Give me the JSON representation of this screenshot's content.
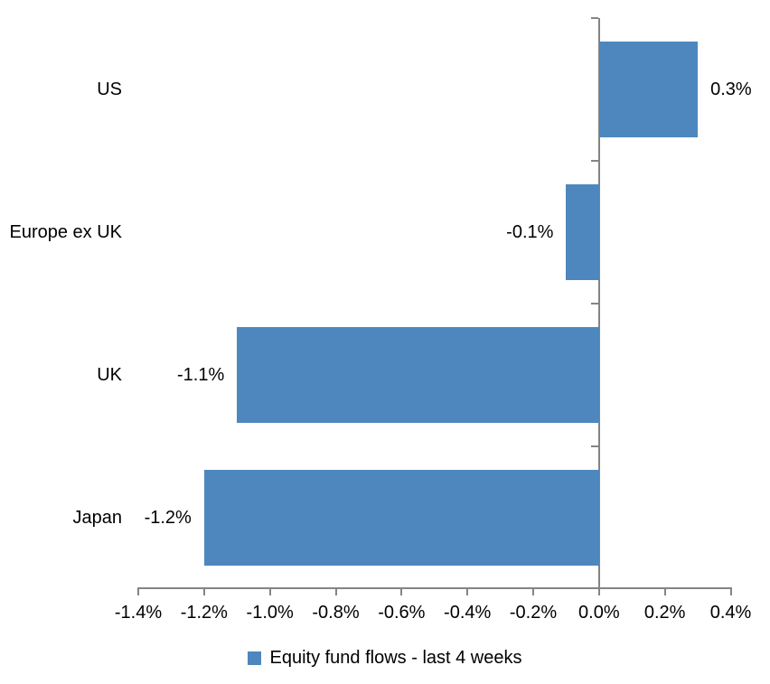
{
  "chart_data": {
    "type": "bar",
    "orientation": "horizontal",
    "title": "",
    "categories": [
      "US",
      "Europe ex UK",
      "UK",
      "Japan"
    ],
    "series": [
      {
        "name": "Equity fund flows - last 4 weeks",
        "values": [
          0.3,
          -0.1,
          -1.1,
          -1.2
        ],
        "unit": "%"
      }
    ],
    "data_labels": [
      "0.3%",
      "-0.1%",
      "-1.1%",
      "-1.2%"
    ],
    "xlim": [
      -1.4,
      0.4
    ],
    "x_tick_values": [
      -1.4,
      -1.2,
      -1.0,
      -0.8,
      -0.6,
      -0.4,
      -0.2,
      0.0,
      0.2,
      0.4
    ],
    "x_tick_labels": [
      "-1.4%",
      "-1.2%",
      "-1.0%",
      "-0.8%",
      "-0.6%",
      "-0.4%",
      "-0.2%",
      "0.0%",
      "0.2%",
      "0.4%"
    ],
    "legend": {
      "label": "Equity fund flows - last 4 weeks",
      "position": "bottom",
      "swatch": "square"
    },
    "grid": false,
    "colors": {
      "bar": "#4D87BE",
      "axis": "#848484",
      "text": "#000000",
      "background": "#FFFFFF"
    }
  }
}
